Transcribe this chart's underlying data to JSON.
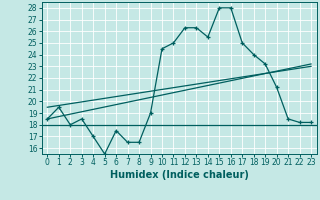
{
  "x_data": [
    0,
    1,
    2,
    3,
    4,
    5,
    6,
    7,
    8,
    9,
    10,
    11,
    12,
    13,
    14,
    15,
    16,
    17,
    18,
    19,
    20,
    21,
    22,
    23
  ],
  "y_main": [
    18.5,
    19.5,
    18.0,
    18.5,
    17.0,
    15.5,
    17.5,
    16.5,
    16.5,
    19.0,
    24.5,
    25.0,
    26.3,
    26.3,
    25.5,
    28.0,
    28.0,
    25.0,
    24.0,
    23.2,
    21.2,
    18.5,
    18.2,
    18.2
  ],
  "y_horizontal": 18.0,
  "trend1_x": [
    0,
    23
  ],
  "trend1_y": [
    18.5,
    23.2
  ],
  "trend2_x": [
    0,
    23
  ],
  "trend2_y": [
    19.5,
    23.0
  ],
  "xlim": [
    -0.5,
    23.5
  ],
  "ylim": [
    15.5,
    28.5
  ],
  "yticks": [
    16,
    17,
    18,
    19,
    20,
    21,
    22,
    23,
    24,
    25,
    26,
    27,
    28
  ],
  "xticks": [
    0,
    1,
    2,
    3,
    4,
    5,
    6,
    7,
    8,
    9,
    10,
    11,
    12,
    13,
    14,
    15,
    16,
    17,
    18,
    19,
    20,
    21,
    22,
    23
  ],
  "xlabel": "Humidex (Indice chaleur)",
  "bg_color": "#c5e8e5",
  "line_color": "#005f5f",
  "grid_color": "#ffffff",
  "tick_fontsize": 5.5,
  "label_fontsize": 7
}
